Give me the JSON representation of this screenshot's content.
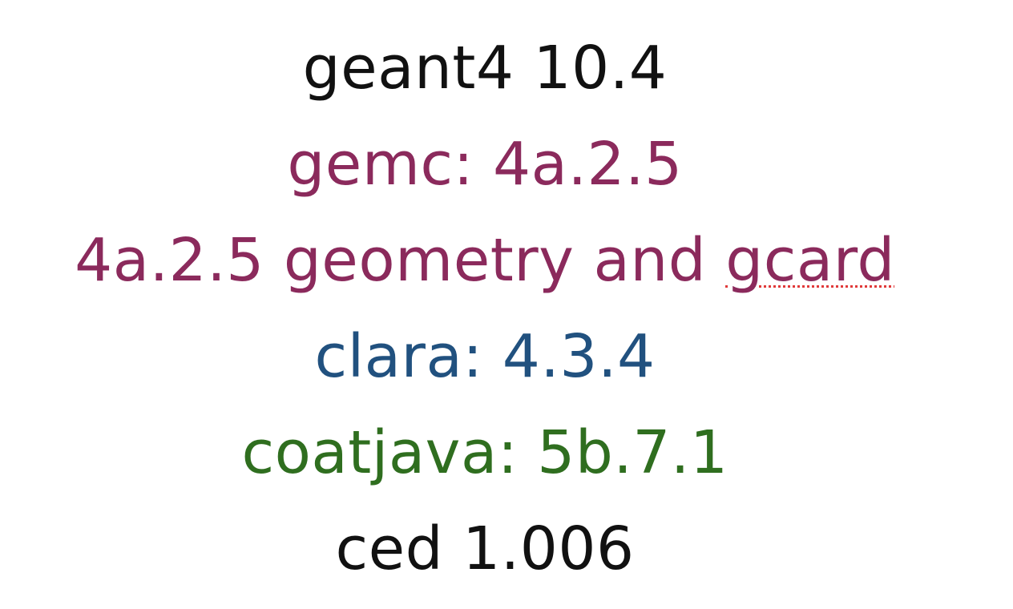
{
  "lines": [
    {
      "text": "geant4 10.4",
      "color": "#111111"
    },
    {
      "text": "gemc: 4a.2.5",
      "color": "#8b2a5c"
    },
    {
      "text_main": "4a.2.5 geometry and ",
      "text_flag": "gcard",
      "color": "#8b2a5c"
    },
    {
      "text": "clara: 4.3.4",
      "color": "#21517f"
    },
    {
      "text": "coatjava: 5b.7.1",
      "color": "#2f6e1f"
    },
    {
      "text": "ced 1.006",
      "color": "#111111"
    }
  ],
  "spellcheck_underline_color": "#e03a3a"
}
